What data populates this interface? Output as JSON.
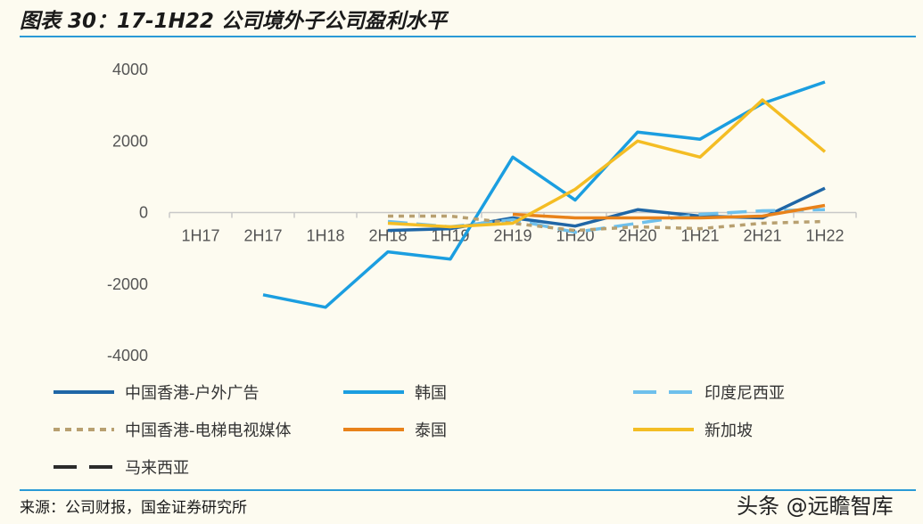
{
  "header": {
    "title": "图表 30：17-1H22 公司境外子公司盈利水平"
  },
  "footer": {
    "source": "来源：公司财报，国金证券研究所",
    "watermark": "头条 @远瞻智库"
  },
  "colors": {
    "accent_rule": "#2a9ad6",
    "hk_outdoor": "#1f66a6",
    "korea": "#1b9ee0",
    "india": "#6ec0ec",
    "hk_elevator": "#b8a070",
    "thailand": "#e8821a",
    "singapore": "#f4bd24",
    "malaysia": "#2b2b2b"
  },
  "chart_data": {
    "type": "line",
    "title": "",
    "xlabel": "",
    "ylabel": "",
    "categories": [
      "1H17",
      "2H17",
      "1H18",
      "2H18",
      "1H19",
      "2H19",
      "1H20",
      "2H20",
      "1H21",
      "2H21",
      "1H22"
    ],
    "ylim": [
      -4000,
      4000
    ],
    "yticks": [
      -4000,
      -2000,
      0,
      2000,
      4000
    ],
    "grid": false,
    "legend_position": "bottom",
    "series": [
      {
        "name": "中国香港-户外广告",
        "color": "#1f66a6",
        "dash": "solid",
        "values": [
          null,
          null,
          null,
          -500,
          -450,
          -150,
          -380,
          80,
          -100,
          -150,
          680
        ]
      },
      {
        "name": "韩国",
        "color": "#1b9ee0",
        "dash": "solid",
        "values": [
          null,
          -2300,
          -2650,
          -1100,
          -1300,
          1550,
          350,
          2250,
          2050,
          3050,
          3650
        ]
      },
      {
        "name": "印度尼西亚",
        "color": "#6ec0ec",
        "dash": "longdash",
        "values": [
          null,
          null,
          null,
          -250,
          -400,
          -200,
          -550,
          -300,
          -50,
          50,
          80
        ]
      },
      {
        "name": "中国香港-电梯电视媒体",
        "color": "#b8a070",
        "dash": "shortdash",
        "values": [
          null,
          null,
          null,
          -100,
          -100,
          -300,
          -500,
          -400,
          -450,
          -300,
          -250
        ]
      },
      {
        "name": "泰国",
        "color": "#e8821a",
        "dash": "solid",
        "values": [
          null,
          null,
          null,
          null,
          null,
          -50,
          -150,
          -150,
          -150,
          -100,
          200
        ]
      },
      {
        "name": "新加坡",
        "color": "#f4bd24",
        "dash": "solid",
        "values": [
          null,
          null,
          null,
          -300,
          -400,
          -300,
          650,
          2000,
          1550,
          3150,
          1700
        ]
      },
      {
        "name": "马来西亚",
        "color": "#2b2b2b",
        "dash": "longdash",
        "values": [
          null,
          null,
          null,
          null,
          null,
          null,
          null,
          null,
          null,
          null,
          null
        ]
      }
    ]
  }
}
